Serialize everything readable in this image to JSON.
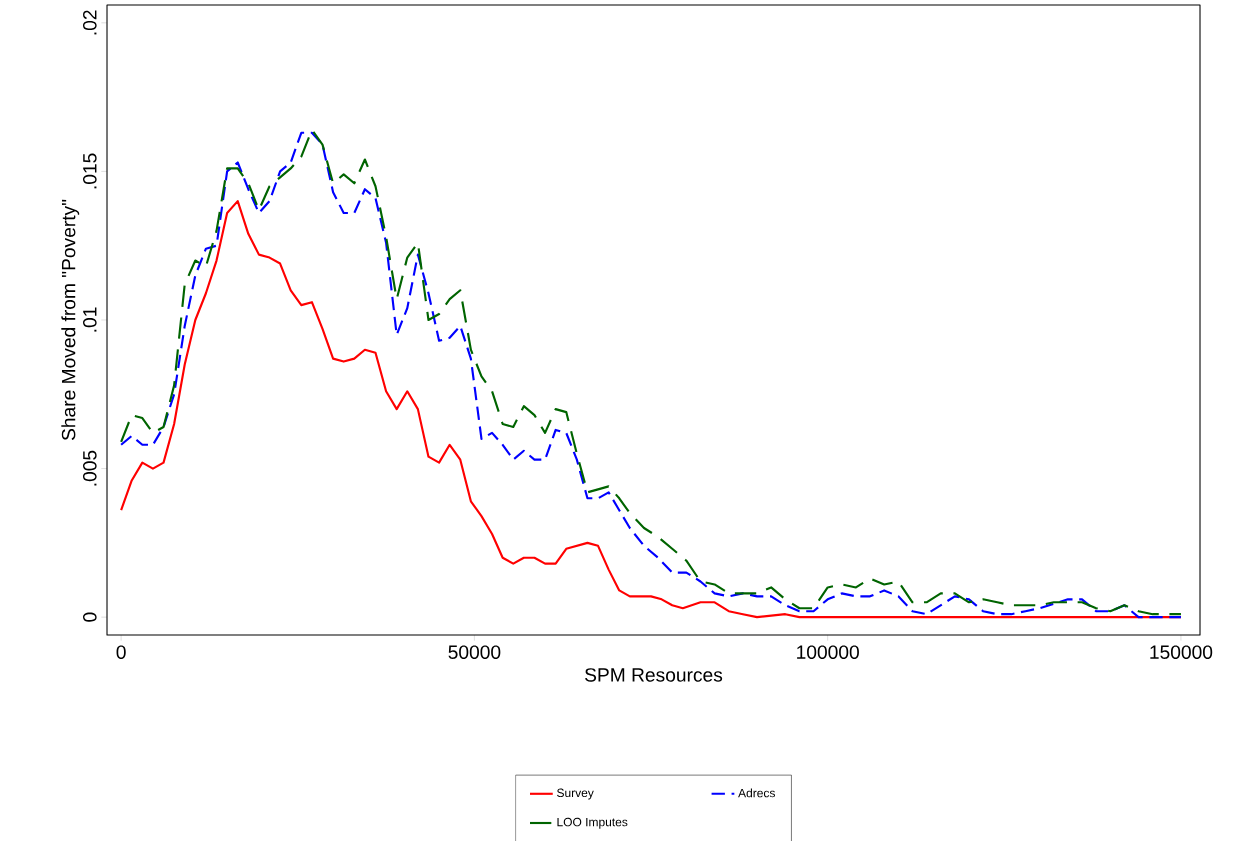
{
  "chart_data": {
    "type": "line",
    "xlabel": "SPM Resources",
    "ylabel": "Share Moved from \"Poverty\"",
    "xlim": [
      -2000,
      152700
    ],
    "ylim": [
      -0.0006,
      0.0206
    ],
    "xticks": [
      0,
      50000,
      100000,
      150000
    ],
    "yticks": [
      0,
      {
        "value": 0.005,
        "label": ".005"
      },
      {
        "value": 0.01,
        "label": ".01"
      },
      {
        "value": 0.015,
        "label": ".015"
      },
      {
        "value": 0.02,
        "label": ".02"
      }
    ],
    "grid": false,
    "legend": "bottom",
    "marker": "none",
    "series": [
      {
        "name": "Survey",
        "color": "#ff0000",
        "line_style": "solid",
        "x": [
          0,
          1500,
          3000,
          4500,
          6000,
          7500,
          9000,
          10500,
          12000,
          13500,
          15000,
          16500,
          18000,
          19500,
          21000,
          22500,
          24000,
          25500,
          27000,
          28500,
          30000,
          31500,
          33000,
          34500,
          36000,
          37500,
          39000,
          40500,
          42000,
          43500,
          45000,
          46500,
          48000,
          49500,
          51000,
          52500,
          54000,
          55500,
          57000,
          58500,
          60000,
          61500,
          63000,
          64500,
          66000,
          67500,
          69000,
          70500,
          72000,
          75000,
          76500,
          78000,
          79500,
          82000,
          84000,
          86000,
          88000,
          90000,
          94000,
          96000,
          150000
        ],
        "values": [
          0.0036,
          0.0046,
          0.0052,
          0.005,
          0.0052,
          0.0065,
          0.0085,
          0.01,
          0.0109,
          0.012,
          0.0136,
          0.014,
          0.0129,
          0.0122,
          0.0121,
          0.0119,
          0.011,
          0.0105,
          0.0106,
          0.0097,
          0.0087,
          0.0086,
          0.0087,
          0.009,
          0.0089,
          0.0076,
          0.007,
          0.0076,
          0.007,
          0.0054,
          0.0052,
          0.0058,
          0.0053,
          0.0039,
          0.0034,
          0.0028,
          0.002,
          0.0018,
          0.002,
          0.002,
          0.0018,
          0.0018,
          0.0023,
          0.0024,
          0.0025,
          0.0024,
          0.0016,
          0.0009,
          0.0007,
          0.0007,
          0.0006,
          0.0004,
          0.0003,
          0.0005,
          0.0005,
          0.0002,
          0.0001,
          0,
          0.0001,
          0,
          0
        ]
      },
      {
        "name": "Adrecs",
        "color": "#0000ff",
        "line_style": "dashed",
        "x": [
          0,
          1500,
          3000,
          4500,
          6000,
          7500,
          9000,
          10500,
          12000,
          13500,
          15000,
          16500,
          18000,
          19500,
          21000,
          22500,
          24000,
          25500,
          27000,
          28500,
          30000,
          31500,
          33000,
          34500,
          36000,
          37500,
          39000,
          40500,
          42000,
          43500,
          45000,
          46500,
          48000,
          49500,
          51000,
          52500,
          54000,
          55500,
          57000,
          58500,
          60000,
          61500,
          63000,
          64500,
          66000,
          67500,
          69000,
          70500,
          72000,
          74000,
          76000,
          78000,
          80000,
          82000,
          84000,
          86000,
          88000,
          90000,
          92000,
          94000,
          96000,
          98000,
          100000,
          102000,
          104000,
          106000,
          108000,
          110000,
          112000,
          114000,
          116000,
          118000,
          120000,
          122000,
          124000,
          126000,
          128000,
          130000,
          134000,
          136000,
          138000,
          140000,
          142000,
          144000,
          146000,
          150000
        ],
        "values": [
          0.0058,
          0.0061,
          0.0058,
          0.0058,
          0.0064,
          0.0075,
          0.0098,
          0.0115,
          0.0124,
          0.0125,
          0.015,
          0.0153,
          0.0144,
          0.0136,
          0.014,
          0.015,
          0.0153,
          0.0163,
          0.0163,
          0.0159,
          0.0143,
          0.0136,
          0.0136,
          0.0144,
          0.0141,
          0.0126,
          0.0095,
          0.0104,
          0.0122,
          0.0109,
          0.0093,
          0.0094,
          0.0098,
          0.0087,
          0.006,
          0.0062,
          0.0058,
          0.0053,
          0.0056,
          0.0053,
          0.0053,
          0.0063,
          0.0062,
          0.0053,
          0.004,
          0.004,
          0.0042,
          0.0036,
          0.003,
          0.0024,
          0.002,
          0.0015,
          0.0015,
          0.0012,
          0.0008,
          0.0007,
          0.0008,
          0.0007,
          0.0007,
          0.0004,
          0.0002,
          0.0002,
          0.0006,
          0.0008,
          0.0007,
          0.0007,
          0.0009,
          0.0007,
          0.0002,
          0.0001,
          0.0004,
          0.0007,
          0.0006,
          0.0002,
          0.0001,
          0.0001,
          0.0002,
          0.0003,
          0.0006,
          0.0006,
          0.0002,
          0.0002,
          0.0004,
          0,
          0,
          0
        ]
      },
      {
        "name": "LOO Imputes",
        "color": "#006400",
        "line_style": "dashed",
        "x": [
          0,
          1500,
          3000,
          4500,
          6000,
          7500,
          9000,
          10500,
          12000,
          13500,
          15000,
          16500,
          18000,
          19500,
          21000,
          22500,
          24000,
          25500,
          27000,
          28500,
          30000,
          31500,
          33000,
          34500,
          36000,
          37500,
          39000,
          40500,
          42000,
          43500,
          45000,
          46500,
          48000,
          49500,
          51000,
          52500,
          54000,
          55500,
          57000,
          58500,
          60000,
          61500,
          63000,
          64500,
          66000,
          67500,
          69000,
          70500,
          72000,
          74000,
          76000,
          78000,
          80000,
          82000,
          84000,
          86000,
          88000,
          90000,
          92000,
          94000,
          96000,
          98000,
          100000,
          102000,
          104000,
          106000,
          108000,
          110000,
          112000,
          114000,
          116000,
          118000,
          120000,
          122000,
          124000,
          126000,
          128000,
          130000,
          132000,
          134000,
          136000,
          138000,
          140000,
          142000,
          144000,
          146000,
          150000
        ],
        "values": [
          0.0059,
          0.0068,
          0.0067,
          0.0062,
          0.0064,
          0.0078,
          0.0112,
          0.012,
          0.0118,
          0.013,
          0.0151,
          0.0151,
          0.0146,
          0.0137,
          0.0145,
          0.0148,
          0.0151,
          0.0155,
          0.0164,
          0.0159,
          0.0146,
          0.0149,
          0.0146,
          0.0154,
          0.0145,
          0.0128,
          0.0107,
          0.0121,
          0.0126,
          0.01,
          0.0102,
          0.0107,
          0.011,
          0.009,
          0.0081,
          0.0076,
          0.0065,
          0.0064,
          0.0071,
          0.0068,
          0.0062,
          0.007,
          0.0069,
          0.0055,
          0.0042,
          0.0043,
          0.0044,
          0.004,
          0.0035,
          0.003,
          0.0027,
          0.0023,
          0.0019,
          0.0012,
          0.0011,
          0.0008,
          0.0008,
          0.0008,
          0.001,
          0.0006,
          0.0003,
          0.0003,
          0.001,
          0.0011,
          0.001,
          0.0013,
          0.0011,
          0.0012,
          0.0005,
          0.0005,
          0.0008,
          0.0008,
          0.0005,
          0.0006,
          0.0005,
          0.0004,
          0.0004,
          0.0004,
          0.0005,
          0.0005,
          0.0005,
          0.0003,
          0.0002,
          0.0004,
          0.0002,
          0.0001,
          0.0001
        ]
      }
    ]
  }
}
